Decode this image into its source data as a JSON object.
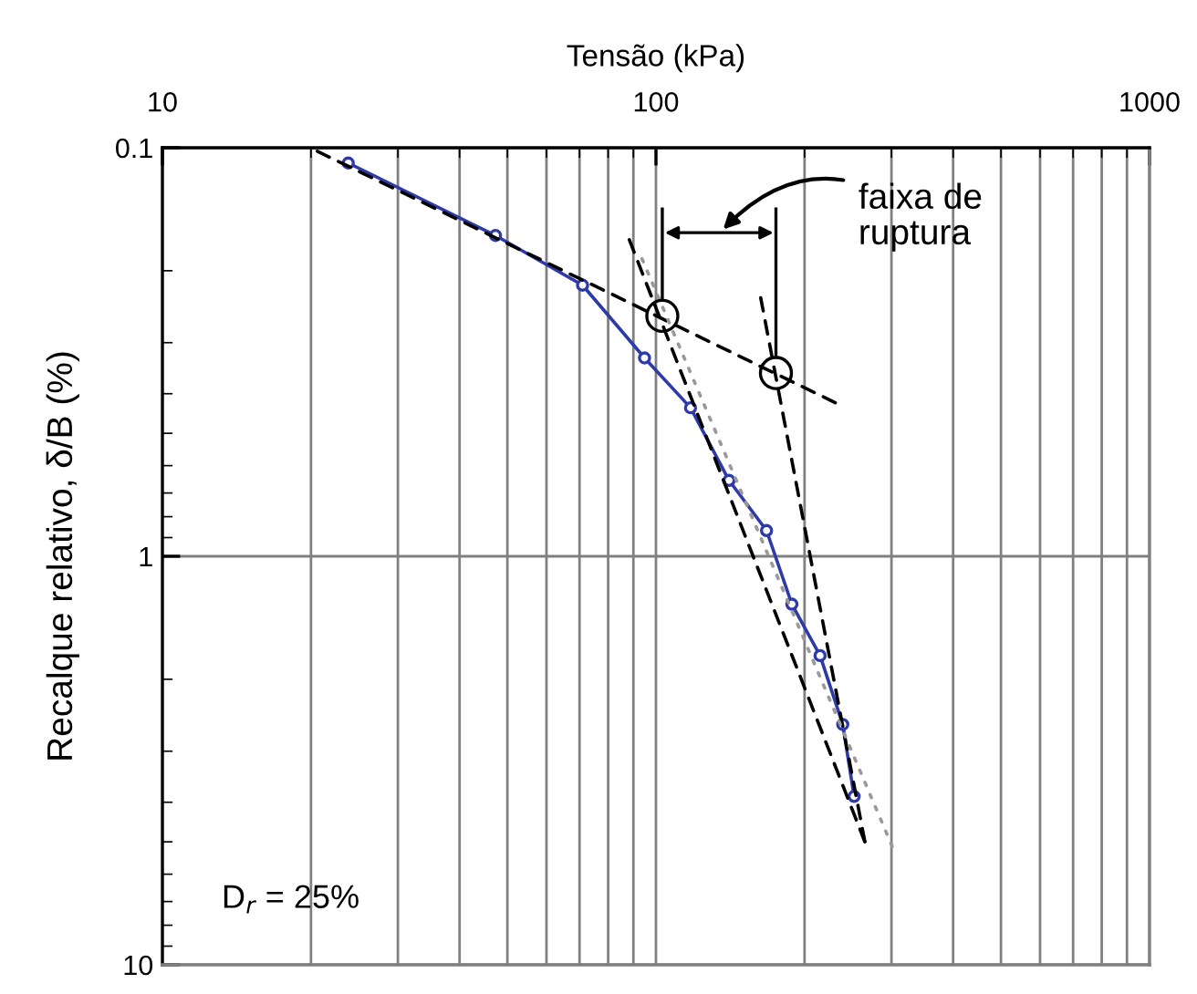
{
  "chart_data": {
    "type": "line",
    "xlabel": "Tensão (kPa)",
    "ylabel": "Recalque relativo, δ/B (%)",
    "log": "xy",
    "xlim": [
      10,
      1000
    ],
    "xticks": [
      10,
      100,
      1000
    ],
    "ylim": [
      10,
      0.1
    ],
    "yticks": [
      0.1,
      1,
      10
    ],
    "grid": true,
    "series": [
      {
        "color": "#2e3aa6",
        "marker": "circle",
        "line_style": "solid",
        "x": [
          23.8,
          47.3,
          71.0,
          94.8,
          117.5,
          140.6,
          167.5,
          188.5,
          215,
          239,
          252
        ],
        "values": [
          0.109,
          0.164,
          0.217,
          0.327,
          0.433,
          0.652,
          0.865,
          1.31,
          1.75,
          2.58,
          3.87
        ]
      },
      {
        "color": "#000000",
        "marker": "none",
        "line_style": "dashed",
        "x": [
          20.6,
          231
        ],
        "values": [
          0.102,
          0.421
        ]
      },
      {
        "color": "#000000",
        "marker": "none",
        "line_style": "dashed",
        "x": [
          88.3,
          265
        ],
        "values": [
          0.168,
          5.0
        ]
      },
      {
        "color": "#000000",
        "marker": "none",
        "line_style": "dashed",
        "x": [
          163,
          265
        ],
        "values": [
          0.233,
          5.0
        ]
      },
      {
        "color": "#999999",
        "marker": "none",
        "line_style": "dotted",
        "x": [
          93.7,
          301
        ],
        "values": [
          0.187,
          5.13
        ]
      },
      {
        "type": "scatter",
        "color": "#000000",
        "marker": "circle",
        "x": [
          103,
          175
        ],
        "values": [
          0.258,
          0.356
        ]
      }
    ],
    "annotations": [
      "faixa de\nruptura",
      "D$_{r}$ = 25%"
    ]
  }
}
